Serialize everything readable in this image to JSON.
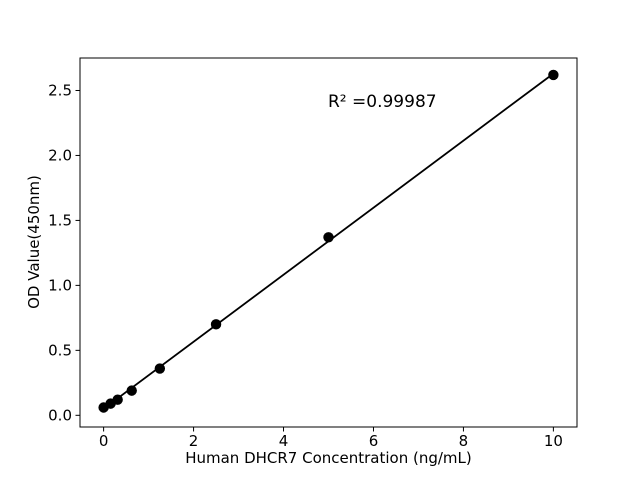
{
  "figure": {
    "background": "#ffffff",
    "foreground": "#000000"
  },
  "chart_data": {
    "type": "scatter",
    "title": "",
    "series": [
      {
        "name": "standard-curve-points",
        "x": [
          0,
          0.156,
          0.3125,
          0.625,
          1.25,
          2.5,
          5,
          10
        ],
        "y": [
          0.06,
          0.09,
          0.12,
          0.19,
          0.36,
          0.7,
          1.37,
          2.62
        ],
        "marker": "circle",
        "marker_color": "#000000"
      }
    ],
    "trendline": {
      "name": "linear-fit",
      "x": [
        0,
        10
      ],
      "y": [
        0.05,
        2.63
      ],
      "color": "#000000"
    },
    "annotation": {
      "text": "R² =0.99987"
    },
    "x_axis": {
      "label": "Human DHCR7 Concentration (ng/mL)",
      "ticks": [
        0,
        2,
        4,
        6,
        8,
        10
      ],
      "tick_labels": [
        "0",
        "2",
        "4",
        "6",
        "8",
        "10"
      ],
      "lim": [
        -0.525,
        10.525
      ]
    },
    "y_axis": {
      "label": "OD Value(450nm)",
      "ticks": [
        0,
        0.5,
        1,
        1.5,
        2,
        2.5
      ],
      "tick_labels": [
        "0.0",
        "0.5",
        "1.0",
        "1.5",
        "2.0",
        "2.5"
      ],
      "lim": [
        -0.09,
        2.75
      ]
    },
    "grid": false,
    "legend": null
  }
}
